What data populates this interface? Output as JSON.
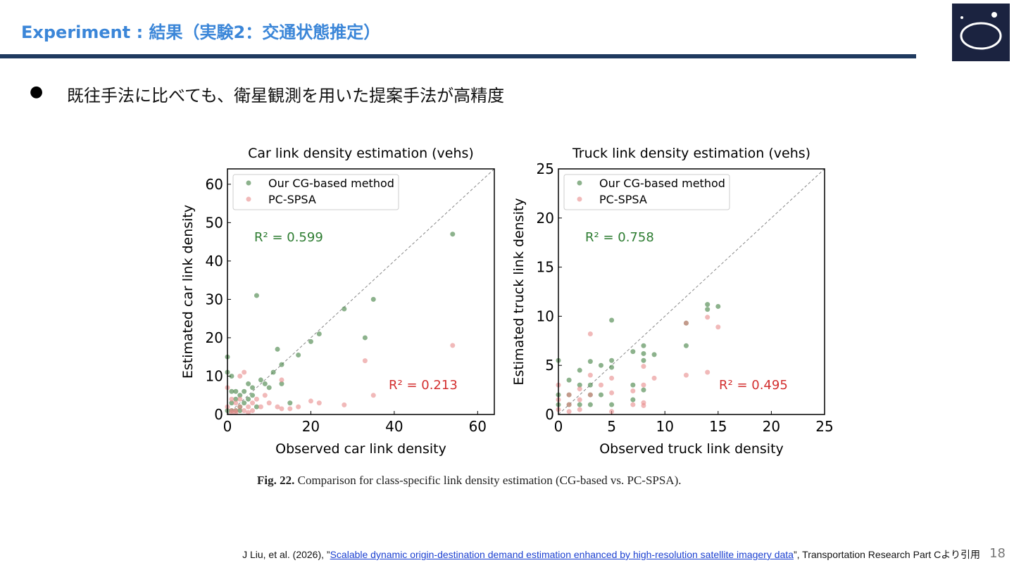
{
  "header": {
    "title": "Experiment : 結果（実験2：交通状態推定）"
  },
  "bullet": "既往手法に比べても、衛星観測を用いた提案手法が高精度",
  "chart_data": [
    {
      "type": "scatter",
      "title": "Car link density estimation (vehs)",
      "x_label": "Observed car link density",
      "y_label": "Estimated car link density",
      "xlim": [
        0,
        64
      ],
      "ylim": [
        0,
        64
      ],
      "xticks": [
        0,
        20,
        40,
        60
      ],
      "yticks": [
        0,
        10,
        20,
        30,
        40,
        50,
        60
      ],
      "annotations": [
        "R² = 0.599",
        "R² = 0.213"
      ],
      "annotation_colors": [
        "#2e7d32",
        "#d32f2f"
      ],
      "legend": "upper left",
      "series": [
        {
          "name": "Our CG-based method",
          "color": "#3f7f3f",
          "x": [
            54,
            35,
            28,
            33,
            22,
            20,
            12,
            17,
            7,
            13,
            11,
            8,
            9,
            6,
            5,
            4,
            3,
            2,
            1,
            0,
            0,
            1,
            2,
            3,
            4,
            5,
            6,
            7,
            10,
            13,
            15,
            0,
            1,
            2,
            3,
            1
          ],
          "values": [
            47,
            30,
            27.5,
            20,
            21,
            19,
            17,
            15.5,
            31,
            13,
            11,
            9,
            8,
            7,
            8,
            6,
            5,
            4,
            3,
            15,
            11,
            10,
            6,
            2,
            3,
            4,
            5,
            2,
            7,
            8,
            3,
            1,
            1,
            1,
            1,
            6
          ]
        },
        {
          "name": "PC-SPSA",
          "color": "#e88a8a",
          "x": [
            54,
            33,
            35,
            28,
            22,
            20,
            17,
            15,
            13,
            12,
            10,
            9,
            8,
            7,
            6,
            5,
            4,
            3,
            2,
            1,
            0,
            1,
            2,
            3,
            4,
            3,
            0,
            1,
            2,
            5,
            6,
            13
          ],
          "values": [
            18,
            14,
            5,
            2.5,
            3,
            3.5,
            2,
            1.5,
            1.5,
            2,
            3,
            5,
            2,
            4,
            3,
            2,
            1,
            2,
            1,
            1,
            2,
            4,
            3,
            4,
            11,
            10,
            7,
            0.5,
            0.5,
            0.5,
            1,
            9
          ]
        }
      ]
    },
    {
      "type": "scatter",
      "title": "Truck link density estimation (vehs)",
      "x_label": "Observed truck link density",
      "y_label": "Estimated truck link density",
      "xlim": [
        0,
        25
      ],
      "ylim": [
        0,
        25
      ],
      "xticks": [
        0,
        5,
        10,
        15,
        20,
        25
      ],
      "yticks": [
        0,
        5,
        10,
        15,
        20,
        25
      ],
      "annotations": [
        "R² = 0.758",
        "R² = 0.495"
      ],
      "annotation_colors": [
        "#2e7d32",
        "#d32f2f"
      ],
      "legend": "upper left",
      "series": [
        {
          "name": "Our CG-based method",
          "color": "#3f7f3f",
          "x": [
            14,
            15,
            14,
            5,
            12,
            12,
            8,
            7,
            8,
            9,
            8,
            5,
            5,
            3,
            4,
            2,
            7,
            8,
            3,
            3,
            2,
            1,
            1,
            0,
            0,
            2,
            1,
            3,
            4,
            7,
            5,
            0
          ],
          "values": [
            11.2,
            11,
            10.7,
            9.6,
            9.3,
            7,
            7,
            6.4,
            6.2,
            6.1,
            5.5,
            5.5,
            4.8,
            5.4,
            5,
            4.5,
            3,
            2.5,
            3,
            2,
            3,
            3.5,
            2,
            2,
            1,
            1,
            1,
            1,
            2,
            1.5,
            1,
            5.5
          ]
        },
        {
          "name": "PC-SPSA",
          "color": "#e88a8a",
          "x": [
            3,
            12,
            14,
            15,
            14,
            12,
            9,
            8,
            8,
            8,
            8,
            7,
            7,
            5,
            5,
            4,
            3,
            3,
            2,
            2,
            1,
            1,
            0,
            0,
            0,
            1,
            2,
            5
          ],
          "values": [
            8.2,
            9.3,
            9.9,
            8.9,
            4.3,
            4,
            3.7,
            4.9,
            3,
            1.2,
            0.9,
            2.4,
            1,
            3.7,
            2.2,
            3,
            4,
            2,
            2.6,
            1.5,
            1,
            2,
            0.5,
            1.5,
            3,
            0.3,
            0.5,
            0.3
          ]
        }
      ]
    }
  ],
  "caption": {
    "label": "Fig. 22.",
    "text": "Comparison for class-specific link density estimation (CG-based vs. PC-SPSA)."
  },
  "footer": {
    "before": "J Liu, et al. (2026), ”",
    "link": "Scalable dynamic origin-destination demand estimation enhanced by high-resolution satellite imagery data",
    "after": "”, Transportation Research Part Cより引用",
    "page": "18"
  }
}
